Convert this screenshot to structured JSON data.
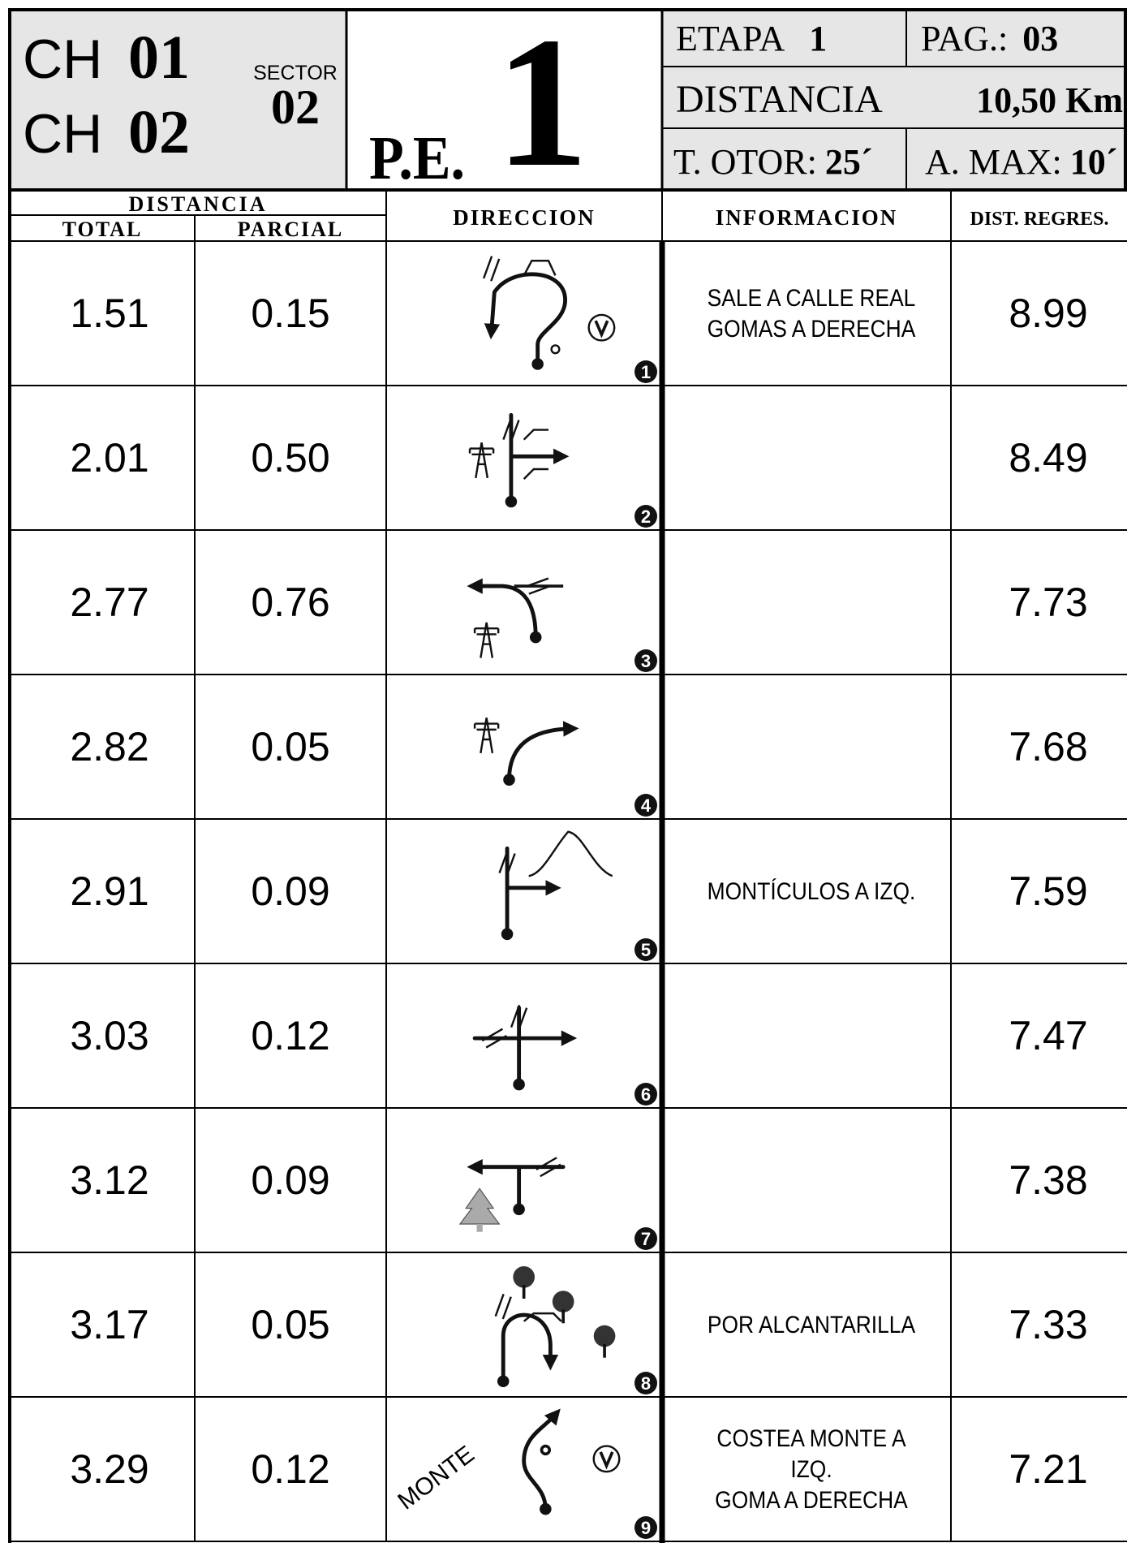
{
  "header": {
    "checkpoints": [
      {
        "label": "CH",
        "number": "01"
      },
      {
        "label": "CH",
        "number": "02"
      }
    ],
    "sector": {
      "label": "SECTOR",
      "number": "02"
    },
    "pe": {
      "label": "P.E.",
      "number": "1"
    },
    "etapa": {
      "label": "ETAPA",
      "value": "1"
    },
    "pag": {
      "label": "PAG.:",
      "value": "03"
    },
    "distancia": {
      "label": "DISTANCIA",
      "value": "10,50 Km"
    },
    "t_otor": {
      "label": "T. OTOR:",
      "value": "25´"
    },
    "a_max": {
      "label": "A. MAX:",
      "value": "10´"
    }
  },
  "columns": {
    "distancia": "DISTANCIA",
    "total": "TOTAL",
    "parcial": "PARCIAL",
    "direccion": "DIRECCION",
    "informacion": "INFORMACION",
    "regres": "DIST. REGRES."
  },
  "rows": [
    {
      "total": "1.51",
      "parcial": "0.15",
      "number": "1",
      "info": [
        "SALE A CALLE REAL",
        "GOMAS A DERECHA"
      ],
      "regres": "8.99"
    },
    {
      "total": "2.01",
      "parcial": "0.50",
      "number": "2",
      "info": [],
      "regres": "8.49"
    },
    {
      "total": "2.77",
      "parcial": "0.76",
      "number": "3",
      "info": [],
      "regres": "7.73"
    },
    {
      "total": "2.82",
      "parcial": "0.05",
      "number": "4",
      "info": [],
      "regres": "7.68"
    },
    {
      "total": "2.91",
      "parcial": "0.09",
      "number": "5",
      "info": [
        "MONTÍCULOS A IZQ."
      ],
      "regres": "7.59"
    },
    {
      "total": "3.03",
      "parcial": "0.12",
      "number": "6",
      "info": [],
      "regres": "7.47"
    },
    {
      "total": "3.12",
      "parcial": "0.09",
      "number": "7",
      "info": [],
      "regres": "7.38"
    },
    {
      "total": "3.17",
      "parcial": "0.05",
      "number": "8",
      "info": [
        "POR ALCANTARILLA"
      ],
      "regres": "7.33"
    },
    {
      "total": "3.29",
      "parcial": "0.12",
      "number": "9",
      "icon_label": "MONTE",
      "info": [
        "COSTEA MONTE A",
        "IZQ.",
        "GOMA A  DERECHA"
      ],
      "regres": "7.21"
    }
  ]
}
